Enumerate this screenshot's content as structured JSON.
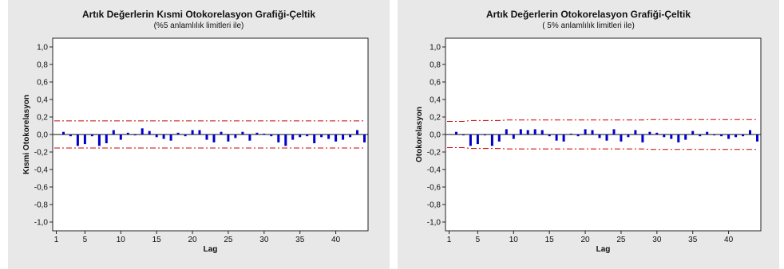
{
  "colors": {
    "bar": "#0000cc",
    "limit": "#d00000",
    "panel_bg": "#e8e8e8",
    "plot_bg": "#ffffff"
  },
  "chart_data": [
    {
      "type": "bar",
      "title": "Artık Değerlerin Kısmi Otokorelasyon Grafiği-Çeltik",
      "subtitle": "(%5 anlamlılık limitleri ile)",
      "xlabel": "Lag",
      "ylabel": "Kısmi Otokorelasyon",
      "xlim": [
        0.5,
        44.5
      ],
      "ylim": [
        -1.1,
        1.1
      ],
      "xticks": [
        1,
        5,
        10,
        15,
        20,
        25,
        30,
        35,
        40
      ],
      "yticks": [
        1.0,
        0.8,
        0.6,
        0.4,
        0.2,
        0.0,
        -0.2,
        -0.4,
        -0.6,
        -0.8,
        -1.0
      ],
      "ytick_labels": [
        "1,0",
        "0,8",
        "0,6",
        "0,4",
        "0,2",
        "0,0",
        "-0,2",
        "-0,4",
        "-0,6",
        "-0,8",
        "-1,0"
      ],
      "x": [
        1,
        2,
        3,
        4,
        5,
        6,
        7,
        8,
        9,
        10,
        11,
        12,
        13,
        14,
        15,
        16,
        17,
        18,
        19,
        20,
        21,
        22,
        23,
        24,
        25,
        26,
        27,
        28,
        29,
        30,
        31,
        32,
        33,
        34,
        35,
        36,
        37,
        38,
        39,
        40,
        41,
        42,
        43,
        44
      ],
      "values": [
        0.0,
        0.03,
        -0.02,
        -0.13,
        -0.11,
        -0.02,
        -0.13,
        -0.1,
        0.05,
        -0.06,
        0.02,
        -0.01,
        0.07,
        0.04,
        -0.03,
        -0.05,
        -0.07,
        0.02,
        -0.02,
        0.05,
        0.05,
        -0.06,
        -0.09,
        0.03,
        -0.08,
        -0.04,
        0.03,
        -0.07,
        0.02,
        0.01,
        -0.02,
        -0.09,
        -0.13,
        -0.06,
        -0.03,
        -0.02,
        -0.1,
        -0.03,
        -0.05,
        -0.08,
        -0.06,
        -0.03,
        0.05,
        -0.09
      ],
      "upper_limit": [
        0.155,
        0.155,
        0.155,
        0.155,
        0.155,
        0.155,
        0.155,
        0.155,
        0.155,
        0.155,
        0.155,
        0.155,
        0.155,
        0.155,
        0.155,
        0.155,
        0.155,
        0.155,
        0.155,
        0.155,
        0.155,
        0.155,
        0.155,
        0.155,
        0.155,
        0.155,
        0.155,
        0.155,
        0.155,
        0.155,
        0.155,
        0.155,
        0.155,
        0.155,
        0.155,
        0.155,
        0.155,
        0.155,
        0.155,
        0.155,
        0.155,
        0.155,
        0.155,
        0.155
      ],
      "lower_limit": [
        -0.155,
        -0.155,
        -0.155,
        -0.155,
        -0.155,
        -0.155,
        -0.155,
        -0.155,
        -0.155,
        -0.155,
        -0.155,
        -0.155,
        -0.155,
        -0.155,
        -0.155,
        -0.155,
        -0.155,
        -0.155,
        -0.155,
        -0.155,
        -0.155,
        -0.155,
        -0.155,
        -0.155,
        -0.155,
        -0.155,
        -0.155,
        -0.155,
        -0.155,
        -0.155,
        -0.155,
        -0.155,
        -0.155,
        -0.155,
        -0.155,
        -0.155,
        -0.155,
        -0.155,
        -0.155,
        -0.155,
        -0.155,
        -0.155,
        -0.155,
        -0.155
      ]
    },
    {
      "type": "bar",
      "title": "Artık Değerlerin Otokorelasyon Grafiği-Çeltik",
      "subtitle": "( 5% anlamlılık limitleri ile)",
      "xlabel": "Lag",
      "ylabel": "Otokorelasyon",
      "xlim": [
        0.5,
        44.5
      ],
      "ylim": [
        -1.1,
        1.1
      ],
      "xticks": [
        1,
        5,
        10,
        15,
        20,
        25,
        30,
        35,
        40
      ],
      "yticks": [
        1.0,
        0.8,
        0.6,
        0.4,
        0.2,
        0.0,
        -0.2,
        -0.4,
        -0.6,
        -0.8,
        -1.0
      ],
      "ytick_labels": [
        "1,0",
        "0,8",
        "0,6",
        "0,4",
        "0,2",
        "0,0",
        "-0,2",
        "-0,4",
        "-0,6",
        "-0,8",
        "-1,0"
      ],
      "x": [
        1,
        2,
        3,
        4,
        5,
        6,
        7,
        8,
        9,
        10,
        11,
        12,
        13,
        14,
        15,
        16,
        17,
        18,
        19,
        20,
        21,
        22,
        23,
        24,
        25,
        26,
        27,
        28,
        29,
        30,
        31,
        32,
        33,
        34,
        35,
        36,
        37,
        38,
        39,
        40,
        41,
        42,
        43,
        44
      ],
      "values": [
        0.0,
        0.03,
        -0.01,
        -0.13,
        -0.11,
        -0.01,
        -0.13,
        -0.08,
        0.06,
        -0.05,
        0.06,
        0.05,
        0.06,
        0.05,
        -0.02,
        -0.07,
        -0.08,
        0.01,
        -0.02,
        0.06,
        0.05,
        -0.04,
        -0.07,
        0.06,
        -0.08,
        -0.03,
        0.05,
        -0.09,
        0.03,
        0.02,
        -0.03,
        -0.05,
        -0.09,
        -0.06,
        0.04,
        -0.02,
        0.03,
        -0.01,
        -0.02,
        -0.05,
        -0.03,
        -0.02,
        0.05,
        -0.08
      ],
      "upper_limit": [
        0.15,
        0.15,
        0.15,
        0.16,
        0.16,
        0.16,
        0.16,
        0.16,
        0.165,
        0.165,
        0.165,
        0.165,
        0.165,
        0.165,
        0.165,
        0.165,
        0.165,
        0.165,
        0.165,
        0.165,
        0.165,
        0.165,
        0.165,
        0.165,
        0.165,
        0.165,
        0.165,
        0.165,
        0.17,
        0.17,
        0.17,
        0.17,
        0.17,
        0.17,
        0.17,
        0.17,
        0.17,
        0.17,
        0.17,
        0.17,
        0.17,
        0.17,
        0.17,
        0.17
      ],
      "lower_limit": [
        -0.15,
        -0.15,
        -0.15,
        -0.16,
        -0.16,
        -0.16,
        -0.16,
        -0.16,
        -0.165,
        -0.165,
        -0.165,
        -0.165,
        -0.165,
        -0.165,
        -0.165,
        -0.165,
        -0.165,
        -0.165,
        -0.165,
        -0.165,
        -0.165,
        -0.165,
        -0.165,
        -0.165,
        -0.165,
        -0.165,
        -0.165,
        -0.165,
        -0.17,
        -0.17,
        -0.17,
        -0.17,
        -0.17,
        -0.17,
        -0.17,
        -0.17,
        -0.17,
        -0.17,
        -0.17,
        -0.17,
        -0.17,
        -0.17,
        -0.17,
        -0.17
      ]
    }
  ]
}
